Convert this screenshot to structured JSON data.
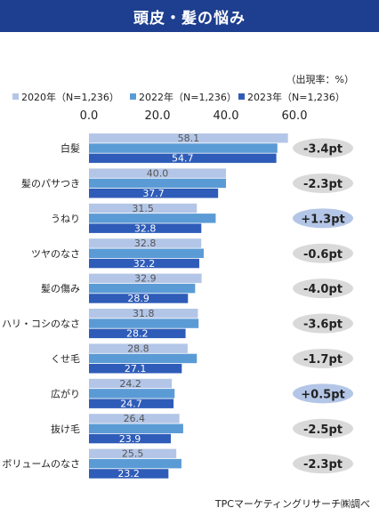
{
  "chart_data": {
    "type": "bar",
    "orientation": "horizontal",
    "title": "頭皮・髪の悩み",
    "unit_note": "（出現率：%）",
    "xlim": [
      0,
      60
    ],
    "xticks": [
      "0.0",
      "20.0",
      "40.0",
      "60.0"
    ],
    "categories": [
      "白髪",
      "髪のパサつき",
      "うねり",
      "ツヤのなさ",
      "髪の傷み",
      "ハリ・コシのなさ",
      "くせ毛",
      "広がり",
      "抜け毛",
      "ボリュームのなさ"
    ],
    "series": [
      {
        "name": "2020年（N=1,236）",
        "color": "#b4c6e7",
        "labels": [
          "58.1",
          "40.0",
          "31.5",
          "32.8",
          "32.9",
          "31.8",
          "28.8",
          "24.2",
          "26.4",
          "25.5"
        ],
        "values": [
          58.1,
          40.0,
          31.5,
          32.8,
          32.9,
          31.8,
          28.8,
          24.2,
          26.4,
          25.5
        ]
      },
      {
        "name": "2022年（N=1,236）",
        "color": "#5b9bd5",
        "labels": [
          "",
          "",
          "",
          "",
          "",
          "",
          "",
          "",
          "",
          ""
        ],
        "values": [
          55.0,
          40.0,
          37.0,
          33.5,
          31.0,
          32.0,
          31.5,
          25.0,
          27.5,
          27.0
        ]
      },
      {
        "name": "2023年（N=1,236）",
        "color": "#2e5cb8",
        "labels": [
          "54.7",
          "37.7",
          "32.8",
          "32.2",
          "28.9",
          "28.2",
          "27.1",
          "24.7",
          "23.9",
          "23.2"
        ],
        "values": [
          54.7,
          37.7,
          32.8,
          32.2,
          28.9,
          28.2,
          27.1,
          24.7,
          23.9,
          23.2
        ]
      }
    ],
    "differences": [
      {
        "text": "-3.4pt",
        "positive": false
      },
      {
        "text": "-2.3pt",
        "positive": false
      },
      {
        "text": "+1.3pt",
        "positive": true
      },
      {
        "text": "-0.6pt",
        "positive": false
      },
      {
        "text": "-4.0pt",
        "positive": false
      },
      {
        "text": "-3.6pt",
        "positive": false
      },
      {
        "text": "-1.7pt",
        "positive": false
      },
      {
        "text": "+0.5pt",
        "positive": true
      },
      {
        "text": "-2.5pt",
        "positive": false
      },
      {
        "text": "-2.3pt",
        "positive": false
      }
    ],
    "legend_position": "top",
    "source": "TPCマーケティングリサーチ㈱調べ"
  },
  "colors": {
    "title_bg": "#1e3f8f",
    "badge_neg": "#d9d9d9",
    "badge_pos": "#b4c6e7"
  }
}
